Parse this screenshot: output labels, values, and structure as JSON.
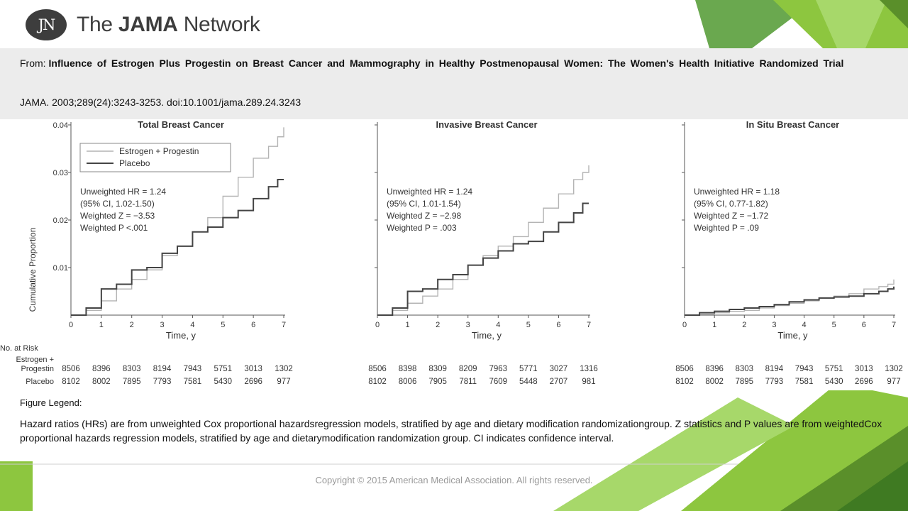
{
  "header": {
    "logo_initials": "JN",
    "logo_text_pre": "The ",
    "logo_text_bold": "JAMA",
    "logo_text_post": " Network"
  },
  "citation": {
    "from_label": "From: ",
    "article_title": "Influence of Estrogen Plus Progestin on Breast Cancer and Mammography in Healthy Postmenopausal Women:  The Women's Health Initiative Randomized  Trial",
    "journal_ref": "JAMA. 2003;289(24):3243-3253. doi:10.1001/jama.289.24.3243"
  },
  "legend": {
    "heading": "Figure Legend:",
    "text": "Hazard ratios (HRs) are from unweighted Cox proportional hazardsregression models, stratified by age and dietary modification randomizationgroup. Z statistics and P values are from weightedCox proportional hazards regression models, stratified by age and dietarymodification randomization group. CI indicates confidence interval."
  },
  "footer": {
    "copyright": "Copyright © 2015 American Medical Association. All rights reserved."
  },
  "colors": {
    "accent_green": "#8dc63f",
    "dark_green": "#5a8f2a",
    "citation_bg": "#ececec",
    "estrogen_line": "#b4b4b4",
    "placebo_line": "#444444"
  },
  "chart_data": {
    "type": "line",
    "ylabel": "Cumulative Proportion",
    "xlabel": "Time, y",
    "x_ticks": [
      0,
      1,
      2,
      3,
      4,
      5,
      6,
      7
    ],
    "y_tick_labels": [
      "0.01",
      "0.02",
      "0.03",
      "0.04"
    ],
    "y_tick_values": [
      0.01,
      0.02,
      0.03,
      0.04
    ],
    "xlim": [
      0,
      7
    ],
    "ylim": [
      0,
      0.04
    ],
    "legend_entries": [
      "Estrogen + Progestin",
      "Placebo"
    ],
    "risk_table": {
      "header": "No. at Risk",
      "row_label_ep_line1": "Estrogen +",
      "row_label_ep_line2": "Progestin",
      "row_label_placebo": "Placebo"
    },
    "panels": [
      {
        "title": "Total Breast Cancer",
        "annotations": [
          "Unweighted HR = 1.24",
          "(95% CI, 1.02-1.50)",
          "Weighted Z = −3.53",
          "Weighted P <.001"
        ],
        "series": [
          {
            "name": "Estrogen + Progestin",
            "x": [
              0,
              0.5,
              1,
              1.5,
              2,
              2.5,
              3,
              3.5,
              4,
              4.5,
              5,
              5.5,
              6,
              6.5,
              6.8,
              7
            ],
            "y": [
              0,
              0.001,
              0.003,
              0.0055,
              0.0075,
              0.0095,
              0.0125,
              0.0145,
              0.0175,
              0.0205,
              0.025,
              0.029,
              0.033,
              0.0355,
              0.0375,
              0.0395
            ]
          },
          {
            "name": "Placebo",
            "x": [
              0,
              0.5,
              1,
              1.5,
              2,
              2.5,
              3,
              3.5,
              4,
              4.5,
              5,
              5.5,
              6,
              6.5,
              6.8,
              7
            ],
            "y": [
              0,
              0.0015,
              0.0055,
              0.0065,
              0.0095,
              0.01,
              0.013,
              0.0145,
              0.0175,
              0.0185,
              0.0205,
              0.022,
              0.0245,
              0.027,
              0.0285,
              0.0285
            ]
          }
        ],
        "risk_ep": [
          "8506",
          "8396",
          "8303",
          "8194",
          "7943",
          "5751",
          "3013",
          "1302"
        ],
        "risk_placebo": [
          "8102",
          "8002",
          "7895",
          "7793",
          "7581",
          "5430",
          "2696",
          "977"
        ]
      },
      {
        "title": "Invasive Breast Cancer",
        "annotations": [
          "Unweighted HR = 1.24",
          "(95% CI, 1.01-1.54)",
          "Weighted Z = −2.98",
          "Weighted P = .003"
        ],
        "series": [
          {
            "name": "Estrogen + Progestin",
            "x": [
              0,
              0.5,
              1,
              1.5,
              2,
              2.5,
              3,
              3.5,
              4,
              4.5,
              5,
              5.5,
              6,
              6.5,
              6.8,
              7
            ],
            "y": [
              0,
              0.001,
              0.0025,
              0.004,
              0.0055,
              0.0075,
              0.0105,
              0.0125,
              0.0145,
              0.0165,
              0.0195,
              0.0225,
              0.0255,
              0.0285,
              0.03,
              0.0315
            ]
          },
          {
            "name": "Placebo",
            "x": [
              0,
              0.5,
              1,
              1.5,
              2,
              2.5,
              3,
              3.5,
              4,
              4.5,
              5,
              5.5,
              6,
              6.5,
              6.8,
              7
            ],
            "y": [
              0,
              0.0015,
              0.005,
              0.0055,
              0.0075,
              0.0085,
              0.0105,
              0.012,
              0.0135,
              0.015,
              0.0155,
              0.0175,
              0.0195,
              0.0215,
              0.0235,
              0.0235
            ]
          }
        ],
        "risk_ep": [
          "8506",
          "8398",
          "8309",
          "8209",
          "7963",
          "5771",
          "3027",
          "1316"
        ],
        "risk_placebo": [
          "8102",
          "8006",
          "7905",
          "7811",
          "7609",
          "5448",
          "2707",
          "981"
        ]
      },
      {
        "title": "In Situ Breast Cancer",
        "annotations": [
          "Unweighted HR = 1.18",
          "(95% CI, 0.77-1.82)",
          "Weighted Z = −1.72",
          "Weighted P = .09"
        ],
        "series": [
          {
            "name": "Estrogen + Progestin",
            "x": [
              0,
              0.5,
              1,
              1.5,
              2,
              2.5,
              3,
              3.5,
              4,
              4.5,
              5,
              5.5,
              6,
              6.5,
              6.8,
              7
            ],
            "y": [
              0,
              0.0002,
              0.0005,
              0.0008,
              0.001,
              0.0015,
              0.002,
              0.0025,
              0.003,
              0.0035,
              0.004,
              0.0045,
              0.0055,
              0.006,
              0.0065,
              0.0075
            ]
          },
          {
            "name": "Placebo",
            "x": [
              0,
              0.5,
              1,
              1.5,
              2,
              2.5,
              3,
              3.5,
              4,
              4.5,
              5,
              5.5,
              6,
              6.5,
              6.8,
              7
            ],
            "y": [
              0,
              0.0005,
              0.0008,
              0.0012,
              0.0015,
              0.0018,
              0.0022,
              0.0028,
              0.0032,
              0.0036,
              0.0038,
              0.004,
              0.0045,
              0.005,
              0.0055,
              0.006
            ]
          }
        ],
        "risk_ep": [
          "8506",
          "8396",
          "8303",
          "8194",
          "7943",
          "5751",
          "3013",
          "1302"
        ],
        "risk_placebo": [
          "8102",
          "8002",
          "7895",
          "7793",
          "7581",
          "5430",
          "2696",
          "977"
        ]
      }
    ]
  }
}
